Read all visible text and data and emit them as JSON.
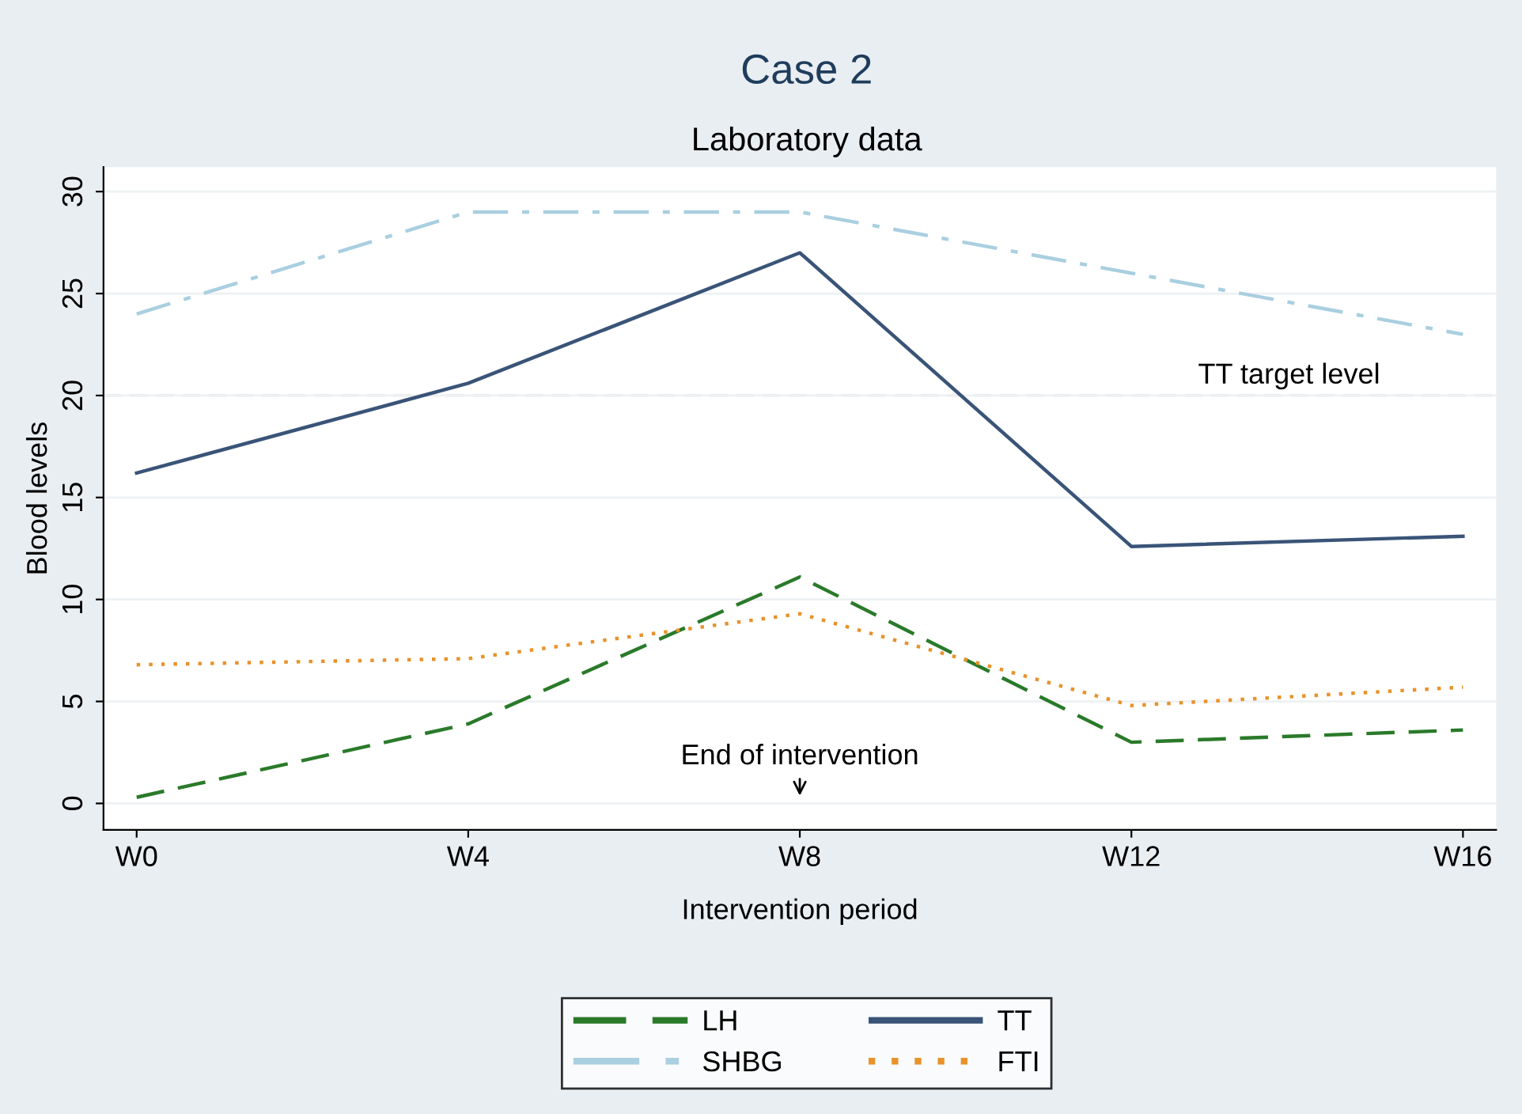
{
  "chart_data": {
    "type": "line",
    "title": "Case 2",
    "subtitle": "Laboratory data",
    "xlabel": "Intervention period",
    "ylabel": "Blood levels",
    "categories": [
      "W0",
      "W4",
      "W8",
      "W12",
      "W16"
    ],
    "series": [
      {
        "name": "LH",
        "color": "#2a7a2a",
        "line_style": "dashed",
        "values": [
          0.3,
          3.9,
          11.1,
          3.0,
          3.6
        ]
      },
      {
        "name": "TT",
        "color": "#3a5478",
        "line_style": "solid",
        "values": [
          16.2,
          20.6,
          27.0,
          12.6,
          13.1
        ]
      },
      {
        "name": "SHBG",
        "color": "#a9cfe0",
        "line_style": "dashdot",
        "values": [
          24,
          29,
          29,
          26,
          23
        ]
      },
      {
        "name": "FTI",
        "color": "#e8922a",
        "line_style": "dotted",
        "values": [
          6.8,
          7.1,
          9.3,
          4.8,
          5.7
        ]
      }
    ],
    "ylim": [
      -1.3,
      31.2
    ],
    "yticks": [
      0,
      5,
      10,
      15,
      20,
      25,
      30
    ],
    "grid": "y",
    "legend": "bottom",
    "marker": "none",
    "ref_lines": [
      {
        "axis": "y",
        "value": 20,
        "label": "TT target level",
        "color": "#cccccc",
        "line_style": "dashed"
      }
    ],
    "annotations": [
      "End of intervention"
    ]
  }
}
